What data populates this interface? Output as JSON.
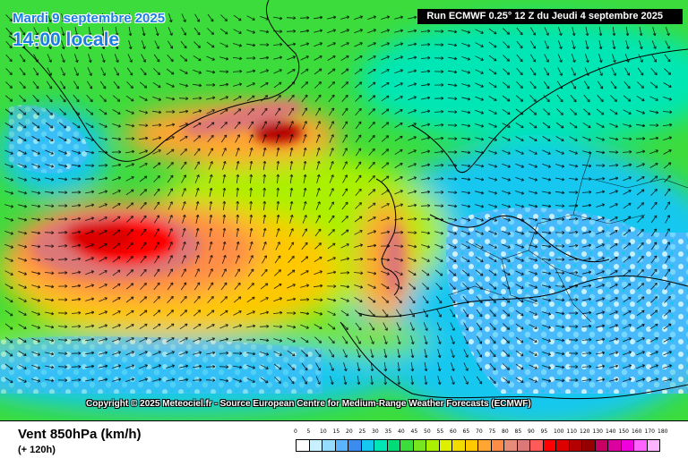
{
  "header": {
    "date": "Mardi 9 septembre 2025",
    "local_time": "14:00 locale",
    "run": "Run ECMWF 0.25° 12 Z du Jeudi 4 septembre 2025"
  },
  "copyright": "Copyright © 2025 Meteociel.fr - Source European Centre for Medium-Range Weather Forecasts (ECMWF)",
  "legend": {
    "parameter": "Vent 850hPa (km/h)",
    "lead_time": "(+ 120h)",
    "ticks": [
      "0",
      "5",
      "10",
      "15",
      "20",
      "25",
      "30",
      "35",
      "40",
      "45",
      "50",
      "55",
      "60",
      "65",
      "70",
      "75",
      "80",
      "85",
      "90",
      "95",
      "100",
      "110",
      "120",
      "130",
      "140",
      "150",
      "160",
      "170",
      "180"
    ],
    "colors": [
      "#ffffff",
      "#c8f0ff",
      "#96dcff",
      "#5ab4ff",
      "#3c8cf0",
      "#14c8f0",
      "#00e6b4",
      "#00dc78",
      "#3cdc3c",
      "#78e61e",
      "#aaf000",
      "#dcf000",
      "#f0dc00",
      "#ffc800",
      "#ffa532",
      "#ff8c46",
      "#e68c78",
      "#dc7878",
      "#ff5a5a",
      "#ff0000",
      "#dc0000",
      "#b40000",
      "#960000",
      "#c80064",
      "#dc00a0",
      "#f000dc",
      "#ff64ff",
      "#ffb4ff"
    ]
  }
}
